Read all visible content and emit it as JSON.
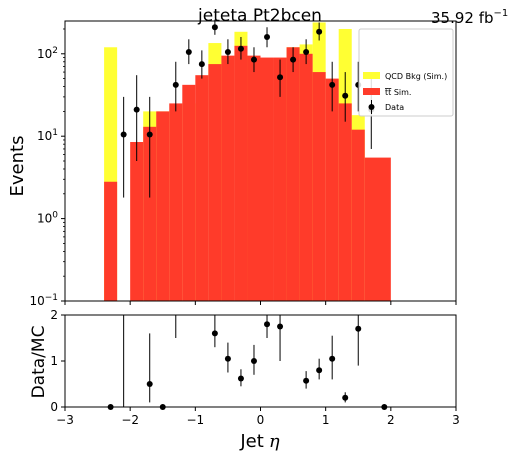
{
  "chart_data": [
    {
      "type": "bar",
      "panel": "main",
      "title": "jeteta  Pt2bcen",
      "lumi_label": "35.92 fb",
      "lumi_exponent": "−1",
      "ylabel": "Events",
      "yscale": "log",
      "ylim": [
        0.1,
        250
      ],
      "xlim": [
        -3,
        3
      ],
      "y_ticks": [
        {
          "value": 0.1,
          "mantissa": "10",
          "exp": "−1"
        },
        {
          "value": 1,
          "mantissa": "10",
          "exp": "0"
        },
        {
          "value": 10,
          "mantissa": "10",
          "exp": "1"
        },
        {
          "value": 100,
          "mantissa": "10",
          "exp": "2"
        }
      ],
      "legend": [
        {
          "label": "QCD Bkg (Sim.)",
          "color": "#ffff33",
          "marker": "box"
        },
        {
          "label_pre": "t",
          "label_post": " Sim.",
          "color": "#ff3b2a",
          "marker": "box"
        },
        {
          "label": "Data",
          "color": "#000000",
          "marker": "point"
        }
      ],
      "legend_position": "top-right",
      "series": [
        {
          "name": "QCD Bkg (Sim.)",
          "color": "#ffff33",
          "bins": [
            {
              "x0": -2.4,
              "x1": -2.2,
              "y": 120
            },
            {
              "x0": -1.8,
              "x1": -1.6,
              "y": 20
            },
            {
              "x0": -1.6,
              "x1": -1.4,
              "y": 20
            },
            {
              "x0": -1.2,
              "x1": -1.0,
              "y": 25
            },
            {
              "x0": -0.8,
              "x1": -0.6,
              "y": 135
            },
            {
              "x0": -0.4,
              "x1": -0.2,
              "y": 185
            },
            {
              "x0": 0.4,
              "x1": 0.6,
              "y": 120
            },
            {
              "x0": 0.6,
              "x1": 0.8,
              "y": 130
            },
            {
              "x0": 0.8,
              "x1": 1.0,
              "y": 240
            },
            {
              "x0": 1.2,
              "x1": 1.4,
              "y": 200
            },
            {
              "x0": 1.4,
              "x1": 1.6,
              "y": 18
            }
          ]
        },
        {
          "name": "tt Sim.",
          "color": "#ff3b2a",
          "bins": [
            {
              "x0": -2.4,
              "x1": -2.2,
              "y": 2.8
            },
            {
              "x0": -2.0,
              "x1": -1.8,
              "y": 8.5
            },
            {
              "x0": -1.8,
              "x1": -1.6,
              "y": 13
            },
            {
              "x0": -1.6,
              "x1": -1.4,
              "y": 20
            },
            {
              "x0": -1.4,
              "x1": -1.2,
              "y": 25
            },
            {
              "x0": -1.2,
              "x1": -1.0,
              "y": 42
            },
            {
              "x0": -1.0,
              "x1": -0.8,
              "y": 55
            },
            {
              "x0": -0.8,
              "x1": -0.6,
              "y": 75
            },
            {
              "x0": -0.6,
              "x1": -0.4,
              "y": 95
            },
            {
              "x0": -0.4,
              "x1": -0.2,
              "y": 125
            },
            {
              "x0": -0.2,
              "x1": 0.0,
              "y": 95
            },
            {
              "x0": 0.0,
              "x1": 0.2,
              "y": 90
            },
            {
              "x0": 0.2,
              "x1": 0.4,
              "y": 90
            },
            {
              "x0": 0.4,
              "x1": 0.6,
              "y": 120
            },
            {
              "x0": 0.6,
              "x1": 0.8,
              "y": 100
            },
            {
              "x0": 0.8,
              "x1": 1.0,
              "y": 60
            },
            {
              "x0": 1.0,
              "x1": 1.2,
              "y": 50
            },
            {
              "x0": 1.2,
              "x1": 1.4,
              "y": 25
            },
            {
              "x0": 1.4,
              "x1": 1.6,
              "y": 12
            },
            {
              "x0": 1.6,
              "x1": 2.0,
              "y": 5.5
            }
          ]
        },
        {
          "name": "Data",
          "color": "#000000",
          "points": [
            {
              "x": -2.1,
              "y": 10.5,
              "lo": 1.8,
              "hi": 30
            },
            {
              "x": -1.9,
              "y": 21,
              "lo": 5,
              "hi": 55
            },
            {
              "x": -1.7,
              "y": 10.5,
              "lo": 1.8,
              "hi": 30
            },
            {
              "x": -1.3,
              "y": 42,
              "lo": 20,
              "hi": 80
            },
            {
              "x": -1.1,
              "y": 105,
              "lo": 75,
              "hi": 150
            },
            {
              "x": -0.9,
              "y": 75,
              "lo": 50,
              "hi": 110
            },
            {
              "x": -0.7,
              "y": 210,
              "lo": 170,
              "hi": 260
            },
            {
              "x": -0.5,
              "y": 105,
              "lo": 75,
              "hi": 150
            },
            {
              "x": -0.3,
              "y": 115,
              "lo": 85,
              "hi": 160
            },
            {
              "x": -0.1,
              "y": 85,
              "lo": 60,
              "hi": 120
            },
            {
              "x": 0.1,
              "y": 160,
              "lo": 120,
              "hi": 210
            },
            {
              "x": 0.3,
              "y": 52,
              "lo": 30,
              "hi": 85
            },
            {
              "x": 0.5,
              "y": 85,
              "lo": 60,
              "hi": 120
            },
            {
              "x": 0.7,
              "y": 105,
              "lo": 75,
              "hi": 150
            },
            {
              "x": 0.9,
              "y": 185,
              "lo": 145,
              "hi": 240
            },
            {
              "x": 1.1,
              "y": 42,
              "lo": 20,
              "hi": 80
            },
            {
              "x": 1.3,
              "y": 31,
              "lo": 15,
              "hi": 60
            },
            {
              "x": 1.5,
              "y": 42,
              "lo": 20,
              "hi": 80
            },
            {
              "x": 1.7,
              "y": 21,
              "lo": 7,
              "hi": 50
            }
          ]
        }
      ]
    },
    {
      "type": "scatter",
      "panel": "ratio",
      "xlabel": "Jet",
      "xlabel_symbol": "η",
      "ylabel": "Data/MC",
      "xlim": [
        -3,
        3
      ],
      "ylim": [
        0,
        2
      ],
      "x_ticks": [
        {
          "value": -3,
          "label": "−3"
        },
        {
          "value": -2,
          "label": "−2"
        },
        {
          "value": -1,
          "label": "−1"
        },
        {
          "value": 0,
          "label": "0"
        },
        {
          "value": 1,
          "label": "1"
        },
        {
          "value": 2,
          "label": "2"
        },
        {
          "value": 3,
          "label": "3"
        }
      ],
      "y_ticks": [
        0,
        1,
        2
      ],
      "points": [
        {
          "x": -2.3,
          "y": 0,
          "lo": 0,
          "hi": 0
        },
        {
          "x": -2.1,
          "y": null,
          "lo": 0,
          "hi": 2
        },
        {
          "x": -1.7,
          "y": 0.5,
          "lo": 0.1,
          "hi": 1.6
        },
        {
          "x": -1.5,
          "y": 0,
          "lo": 0,
          "hi": 0
        },
        {
          "x": -1.3,
          "y": null,
          "lo": 1.5,
          "hi": 2
        },
        {
          "x": -0.7,
          "y": 1.6,
          "lo": 1.3,
          "hi": 2
        },
        {
          "x": -0.5,
          "y": 1.05,
          "lo": 0.75,
          "hi": 1.4
        },
        {
          "x": -0.3,
          "y": 0.62,
          "lo": 0.45,
          "hi": 0.82
        },
        {
          "x": -0.1,
          "y": 1.0,
          "lo": 0.7,
          "hi": 1.35
        },
        {
          "x": 0.1,
          "y": 1.8,
          "lo": 1.5,
          "hi": 2
        },
        {
          "x": 0.3,
          "y": 1.75,
          "lo": 1.0,
          "hi": 2
        },
        {
          "x": 0.7,
          "y": 0.57,
          "lo": 0.4,
          "hi": 0.78
        },
        {
          "x": 0.9,
          "y": 0.8,
          "lo": 0.6,
          "hi": 1.05
        },
        {
          "x": 1.1,
          "y": 1.05,
          "lo": 0.6,
          "hi": 1.55
        },
        {
          "x": 1.3,
          "y": 0.2,
          "lo": 0.1,
          "hi": 0.32
        },
        {
          "x": 1.5,
          "y": 1.7,
          "lo": 0.9,
          "hi": 2
        },
        {
          "x": 1.9,
          "y": 0,
          "lo": 0,
          "hi": 0
        }
      ]
    }
  ]
}
